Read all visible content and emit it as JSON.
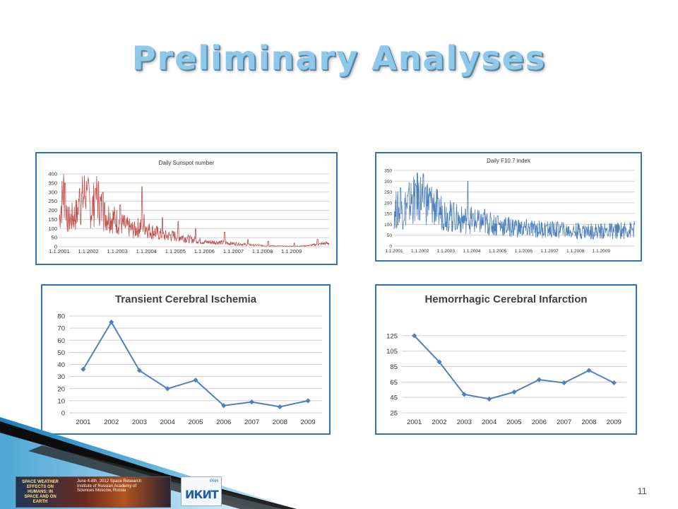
{
  "slide": {
    "title": "Preliminary Analyses",
    "page_number": "11"
  },
  "banner": {
    "left_text": "SPACE WEATHER EFFECTS ON HUMANS: IN SPACE AND ON EARTH",
    "right_text": "June 4-8th, 2012 Space Research Institute of Russian Academy of Sciences Moscow, Russia",
    "logo_text": "ИКИТ",
    "logo_small": "РАН"
  },
  "chart_data": [
    {
      "id": "sunspot",
      "type": "line",
      "title": "Daily Sunspot number",
      "ylim": [
        0,
        400
      ],
      "yticks": [
        "0",
        "50",
        "100",
        "150",
        "200",
        "250",
        "300",
        "350",
        "400"
      ],
      "xticks": [
        "1.1.2001",
        "1.1.2002",
        "1.1.2003",
        "1.1.2004",
        "1.1.2005",
        "1.1.2006",
        "1.1.2007",
        "1.1.2008",
        "1.1.2009"
      ],
      "x_range": [
        2001,
        2010.3
      ],
      "color": "#c0504d",
      "anchors": [
        [
          2001.0,
          150
        ],
        [
          2001.15,
          320
        ],
        [
          2001.3,
          140
        ],
        [
          2001.6,
          180
        ],
        [
          2001.9,
          300
        ],
        [
          2002.1,
          200
        ],
        [
          2002.3,
          280
        ],
        [
          2002.5,
          180
        ],
        [
          2002.7,
          170
        ],
        [
          2003.0,
          140
        ],
        [
          2003.3,
          110
        ],
        [
          2003.6,
          90
        ],
        [
          2003.9,
          130
        ],
        [
          2004.1,
          90
        ],
        [
          2004.3,
          80
        ],
        [
          2004.6,
          60
        ],
        [
          2004.9,
          60
        ],
        [
          2005.2,
          55
        ],
        [
          2005.5,
          40
        ],
        [
          2005.8,
          35
        ],
        [
          2006.0,
          25
        ],
        [
          2006.4,
          25
        ],
        [
          2006.8,
          20
        ],
        [
          2007.2,
          15
        ],
        [
          2007.6,
          10
        ],
        [
          2008.0,
          6
        ],
        [
          2008.5,
          4
        ],
        [
          2009.0,
          3
        ],
        [
          2009.5,
          5
        ],
        [
          2010.0,
          15
        ],
        [
          2010.3,
          20
        ]
      ],
      "spikes": [
        [
          2001.2,
          350
        ],
        [
          2001.7,
          320
        ],
        [
          2001.95,
          310
        ],
        [
          2002.25,
          320
        ],
        [
          2002.5,
          300
        ],
        [
          2003.1,
          230
        ],
        [
          2003.85,
          330
        ],
        [
          2004.55,
          160
        ],
        [
          2005.1,
          140
        ],
        [
          2005.7,
          100
        ],
        [
          2006.7,
          80
        ],
        [
          2007.5,
          40
        ],
        [
          2008.2,
          30
        ],
        [
          2009.1,
          20
        ],
        [
          2009.9,
          40
        ]
      ]
    },
    {
      "id": "f107",
      "type": "line",
      "title": "Daily F10.7 index",
      "ylim": [
        0,
        350
      ],
      "yticks": [
        "0",
        "50",
        "100",
        "150",
        "200",
        "250",
        "300",
        "350"
      ],
      "xticks": [
        "1.1.2001",
        "1.1.2002",
        "1.1.2003",
        "1.1.2004",
        "1.1.2005",
        "1.1.2006",
        "1.1.2007",
        "1.1.2008",
        "1.1.2009"
      ],
      "x_range": [
        2001,
        2010.3
      ],
      "color": "#4f81bd",
      "anchors": [
        [
          2001.0,
          170
        ],
        [
          2001.3,
          160
        ],
        [
          2001.6,
          200
        ],
        [
          2001.9,
          230
        ],
        [
          2002.1,
          220
        ],
        [
          2002.4,
          200
        ],
        [
          2002.7,
          170
        ],
        [
          2003.0,
          150
        ],
        [
          2003.3,
          130
        ],
        [
          2003.6,
          120
        ],
        [
          2003.9,
          125
        ],
        [
          2004.2,
          110
        ],
        [
          2004.5,
          105
        ],
        [
          2004.8,
          100
        ],
        [
          2005.1,
          95
        ],
        [
          2005.4,
          90
        ],
        [
          2005.7,
          85
        ],
        [
          2006.0,
          80
        ],
        [
          2006.4,
          80
        ],
        [
          2006.8,
          78
        ],
        [
          2007.2,
          75
        ],
        [
          2007.6,
          72
        ],
        [
          2008.0,
          70
        ],
        [
          2008.5,
          69
        ],
        [
          2009.0,
          69
        ],
        [
          2009.5,
          70
        ],
        [
          2010.0,
          74
        ],
        [
          2010.3,
          76
        ]
      ],
      "spikes": [
        [
          2001.25,
          270
        ],
        [
          2001.85,
          280
        ],
        [
          2002.2,
          270
        ],
        [
          2002.7,
          220
        ],
        [
          2003.3,
          200
        ],
        [
          2003.85,
          300
        ],
        [
          2004.5,
          170
        ],
        [
          2005.0,
          140
        ],
        [
          2005.7,
          120
        ],
        [
          2006.4,
          100
        ],
        [
          2006.9,
          95
        ],
        [
          2007.5,
          85
        ],
        [
          2008.3,
          80
        ]
      ]
    },
    {
      "id": "tci",
      "type": "line",
      "title": "Transient Cerebral Ischemia",
      "categories": [
        "2001",
        "2002",
        "2003",
        "2004",
        "2005",
        "2006",
        "2007",
        "2008",
        "2009"
      ],
      "values": [
        36,
        75,
        35,
        20,
        27,
        6,
        9,
        5,
        10
      ],
      "ylim": [
        0,
        80
      ],
      "yticks": [
        "0",
        "10",
        "20",
        "30",
        "40",
        "50",
        "60",
        "70",
        "80"
      ],
      "color": "#4f81bd"
    },
    {
      "id": "hci",
      "type": "line",
      "title": "Hemorrhagic Cerebral Infarction",
      "categories": [
        "2001",
        "2002",
        "2003",
        "2004",
        "2005",
        "2006",
        "2007",
        "2008",
        "2009"
      ],
      "values": [
        125,
        91,
        49,
        43,
        52,
        68,
        64,
        80,
        64
      ],
      "ylim": [
        25,
        135
      ],
      "yticks": [
        "25",
        "45",
        "65",
        "85",
        "105",
        "125"
      ],
      "color": "#4f81bd"
    }
  ]
}
